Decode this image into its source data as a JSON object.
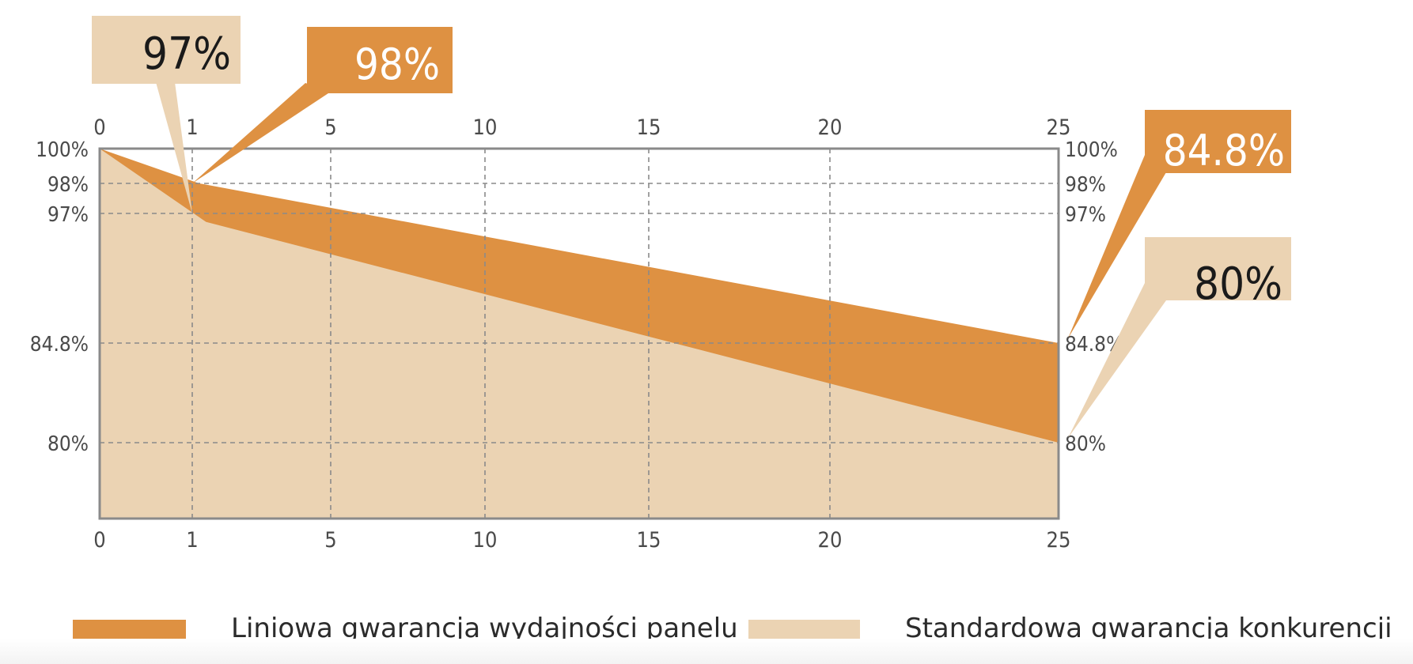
{
  "colors": {
    "linear": "#de9142",
    "standard": "#ebd3b3",
    "frame": "#8a8a8a",
    "grid": "#8a8a8a",
    "axis_text": "#4a4a4a",
    "callout_text_dark": "#1a1a1a",
    "callout_text_light": "#ffffff"
  },
  "chart_data": {
    "type": "area",
    "title": "",
    "xlabel": "",
    "ylabel": "",
    "xlim": [
      0,
      25
    ],
    "ylim": [
      75,
      100
    ],
    "grid": true,
    "x_ticks": [
      0,
      1,
      5,
      10,
      15,
      20,
      25
    ],
    "x_tick_labels": [
      "0",
      "1",
      "5",
      "10",
      "15",
      "20",
      "25"
    ],
    "y_ticks": [
      100,
      98,
      97,
      84.8,
      80
    ],
    "y_tick_labels": [
      "100%",
      "98%",
      "97%",
      "84.8%",
      "80%"
    ],
    "legend_position": "bottom",
    "series": [
      {
        "name": "Liniowa gwarancja wydajności panelu",
        "color_key": "linear",
        "x": [
          0,
          1.2,
          25
        ],
        "y": [
          100,
          98,
          84.8
        ]
      },
      {
        "name": "Standardowa gwarancja konkurencji",
        "color_key": "standard",
        "x": [
          0,
          1.4,
          25
        ],
        "y": [
          100,
          96.2,
          80
        ]
      }
    ],
    "annotations": [
      {
        "text": "97%",
        "at_x": 1,
        "at_y": 97,
        "style": "standard"
      },
      {
        "text": "98%",
        "at_x": 1,
        "at_y": 98,
        "style": "linear"
      },
      {
        "text": "84.8%",
        "at_x": 25,
        "at_y": 84.8,
        "style": "linear"
      },
      {
        "text": "80%",
        "at_x": 25,
        "at_y": 80,
        "style": "standard"
      }
    ]
  },
  "legend": {
    "items": [
      {
        "label": "Liniowa gwarancja wydajności panelu",
        "color_key": "linear"
      },
      {
        "label": "Standardowa gwarancja konkurencji",
        "color_key": "standard"
      }
    ]
  }
}
